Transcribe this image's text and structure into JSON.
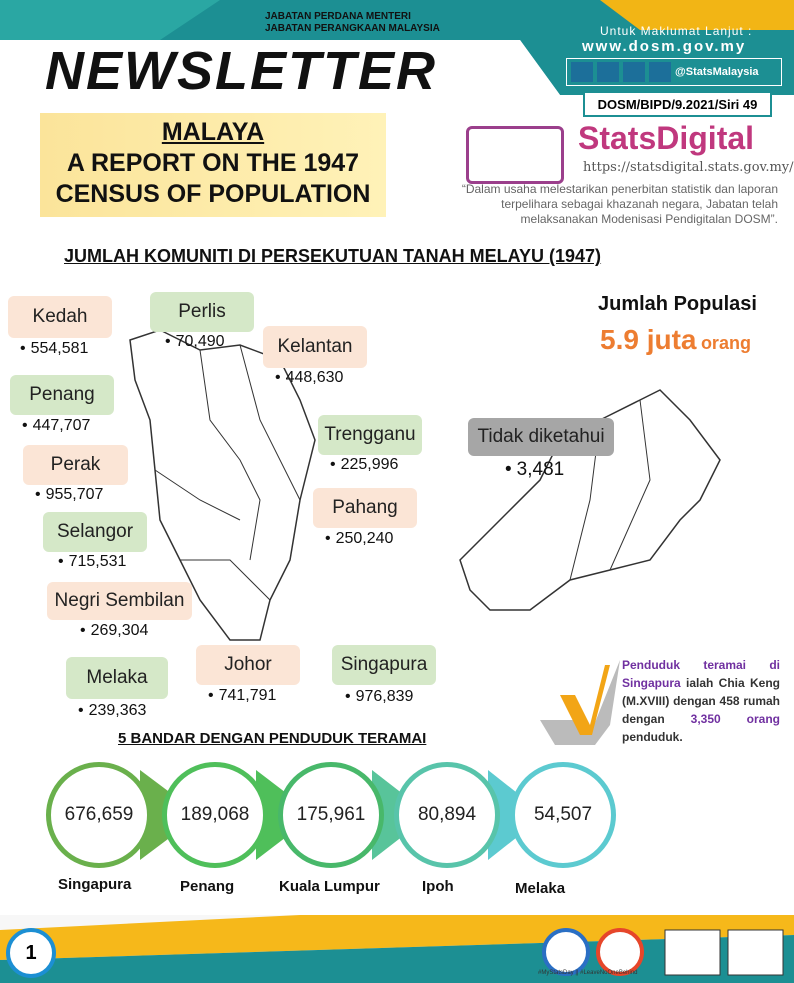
{
  "header": {
    "agency": [
      "JABATAN PERDANA MENTERI",
      "JABATAN PERANGKAAN MALAYSIA"
    ],
    "title": "NEWSLETTER",
    "contact_label": "Untuk Maklumat Lanjut :",
    "website": "www.dosm.gov.my",
    "social": "@StatsMalaysia",
    "reference": "DOSM/BIPD/9.2021/Siri 49"
  },
  "report_title": [
    "MALAYA",
    "A REPORT ON THE 1947",
    "CENSUS OF POPULATION"
  ],
  "statsdigital": {
    "name": "StatsDigital",
    "url": "https://statsdigital.stats.gov.my/",
    "quote": "“Dalam usaha melestarikan penerbitan statistik dan laporan terpelihara sebagai khazanah negara, Jabatan telah melaksanakan Modenisasi Pendigitalan DOSM”."
  },
  "section_title": "JUMLAH KOMUNITI DI PERSEKUTUAN TANAH MELAYU (1947)",
  "states": [
    {
      "name": "Kedah",
      "value": "554,581"
    },
    {
      "name": "Perlis",
      "value": "70,490"
    },
    {
      "name": "Kelantan",
      "value": "448,630"
    },
    {
      "name": "Penang",
      "value": "447,707"
    },
    {
      "name": "Perak",
      "value": "955,707"
    },
    {
      "name": "Trengganu",
      "value": "225,996"
    },
    {
      "name": "Selangor",
      "value": "715,531"
    },
    {
      "name": "Pahang",
      "value": "250,240"
    },
    {
      "name": "Negri Sembilan",
      "value": "269,304"
    },
    {
      "name": "Melaka",
      "value": "239,363"
    },
    {
      "name": "Johor",
      "value": "741,791"
    },
    {
      "name": "Singapura",
      "value": "976,839"
    },
    {
      "name": "Tidak diketahui",
      "value": "3,481"
    }
  ],
  "total": {
    "label": "Jumlah Populasi",
    "value": "5.9 juta",
    "unit": "orang"
  },
  "note": [
    "Penduduk teramai di Singapura",
    "ialah Chia Keng (M.XVIII) dengan 458 rumah dengan",
    "3,350 orang",
    "penduduk."
  ],
  "cities": {
    "title": "5 BANDAR DENGAN PENDUDUK TERAMAI",
    "items": [
      {
        "name": "Singapura",
        "value": "676,659"
      },
      {
        "name": "Penang",
        "value": "189,068"
      },
      {
        "name": "Kuala Lumpur",
        "value": "175,961"
      },
      {
        "name": "Ipoh",
        "value": "80,894"
      },
      {
        "name": "Melaka",
        "value": "54,507"
      }
    ]
  },
  "page_number": "1",
  "footer_tag": "#MyStatsDay || #LeaveNoOneBehind"
}
